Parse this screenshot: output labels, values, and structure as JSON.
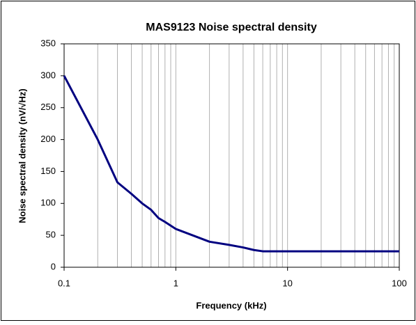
{
  "chart_data": {
    "type": "line",
    "title": "MAS9123 Noise spectral density",
    "x_label": "Frequency (kHz)",
    "y_label": "Noise spectral density (nV/√Hz)",
    "x": [
      0.1,
      0.2,
      0.3,
      0.4,
      0.5,
      0.6,
      0.7,
      0.8,
      1,
      2,
      3,
      4,
      5,
      6,
      10,
      100
    ],
    "series": [
      {
        "name": "Noise spectral density",
        "color": "#000080",
        "values": [
          300,
          200,
          133,
          115,
          100,
          90,
          77,
          71,
          60,
          40,
          35,
          31,
          27,
          25,
          25,
          25
        ]
      }
    ],
    "xlim": [
      0.1,
      100
    ],
    "xticks": [
      0.1,
      1,
      10,
      100
    ],
    "xlog": true,
    "ylim": [
      0,
      350
    ],
    "yticks": [
      0,
      50,
      100,
      150,
      200,
      250,
      300,
      350
    ],
    "xgrid": true,
    "ygrid": false
  }
}
